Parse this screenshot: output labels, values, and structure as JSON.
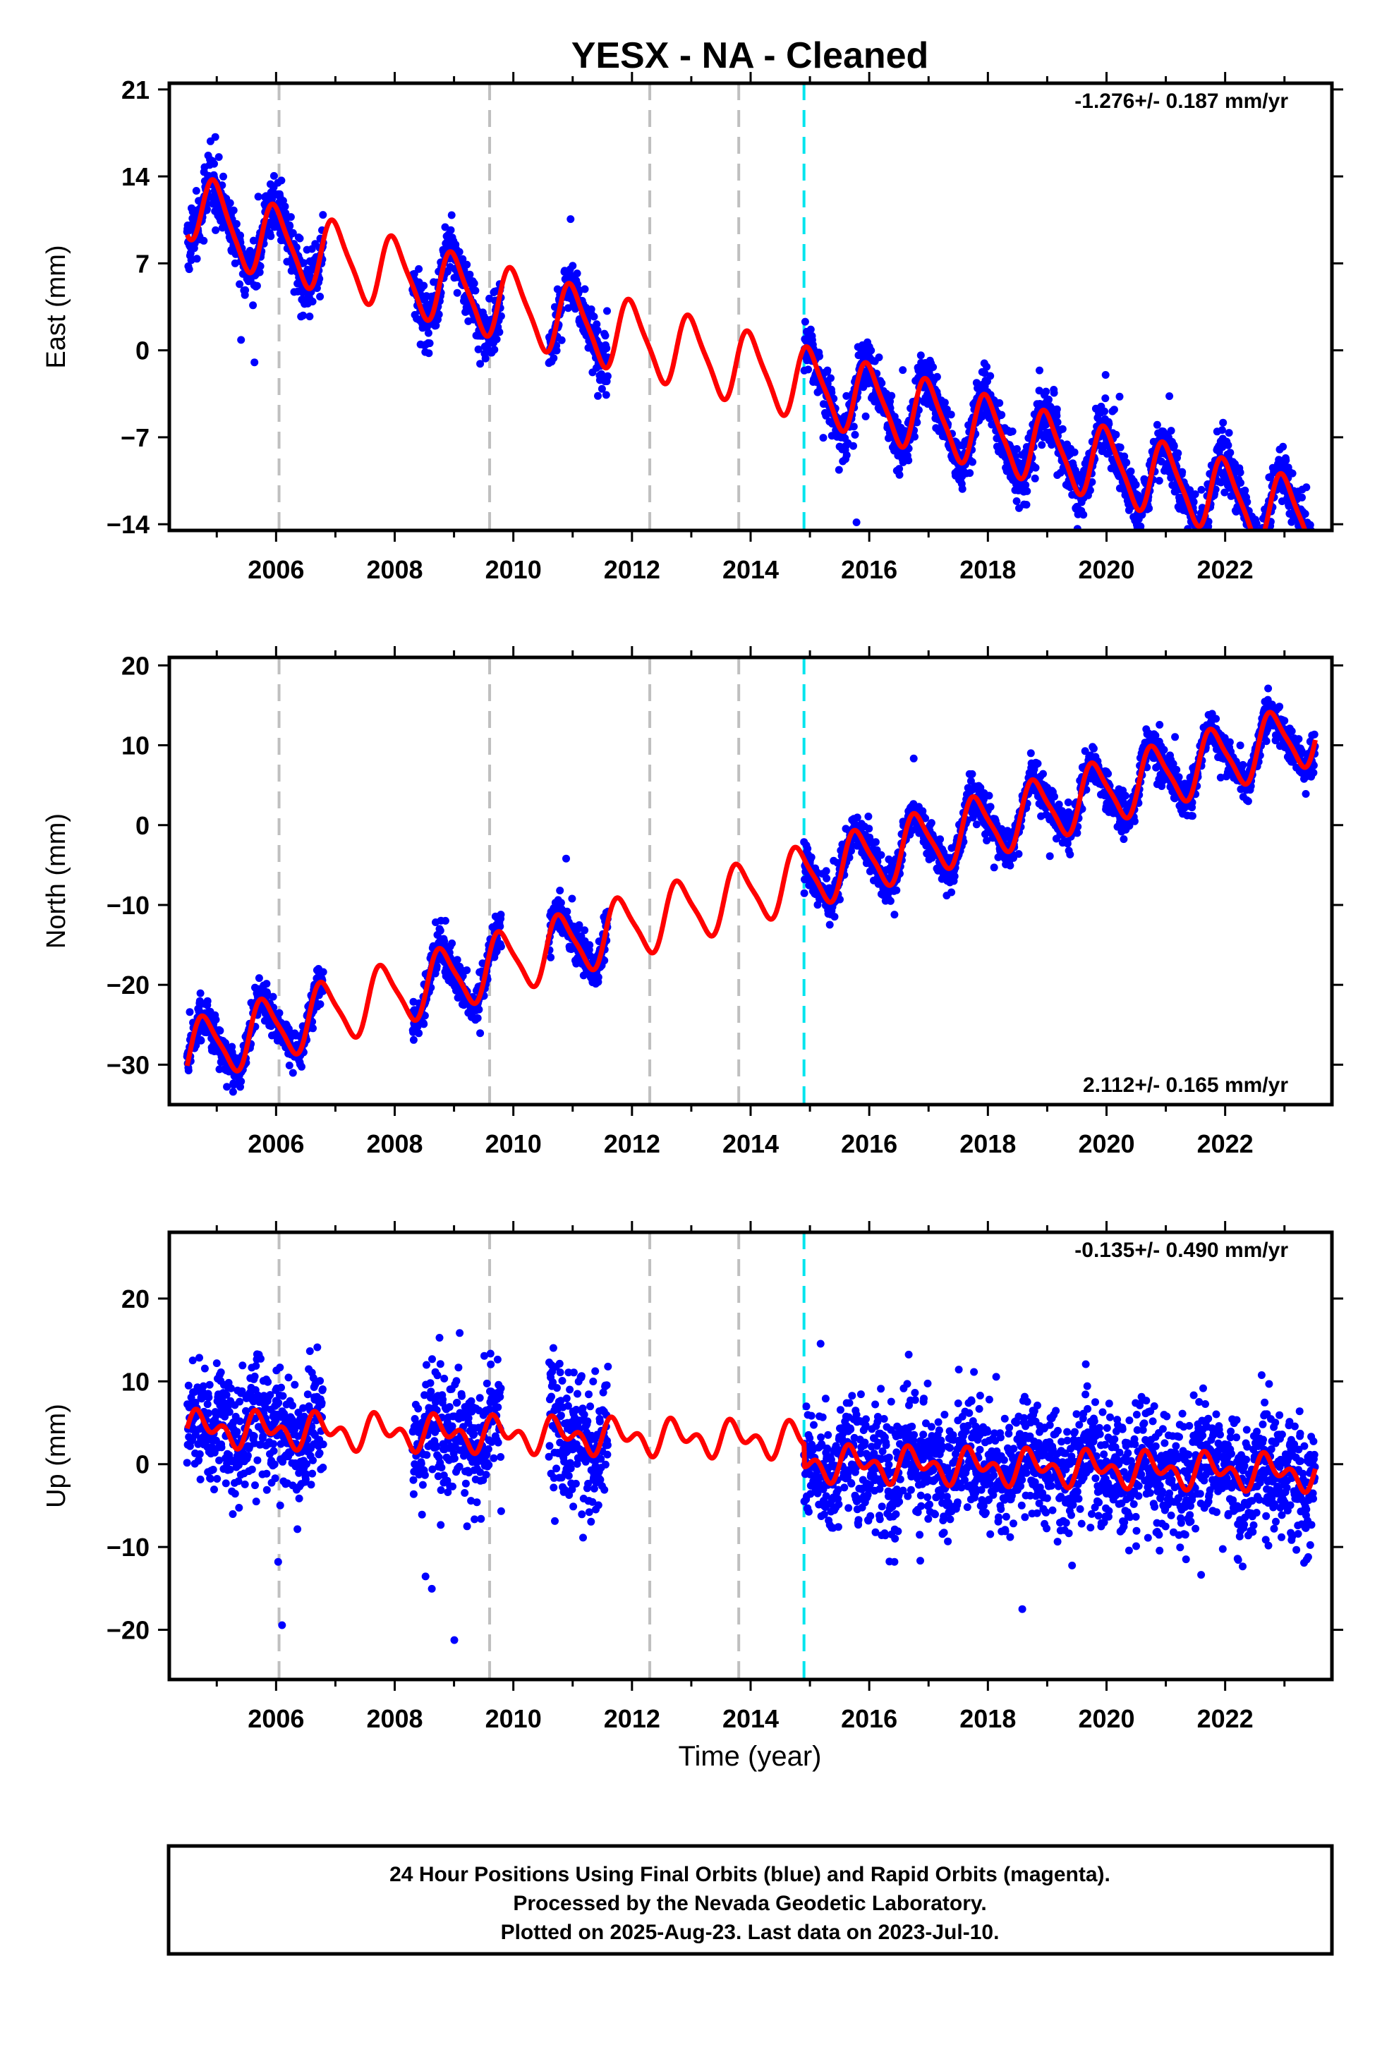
{
  "title": "YESX  - NA - Cleaned",
  "x_axis_label": "Time (year)",
  "footer": {
    "line1": "24 Hour Positions Using Final Orbits (blue) and Rapid Orbits (magenta).",
    "line2": "Processed by the Nevada Geodetic Laboratory.",
    "line3": "Plotted on 2025-Aug-23. Last data on 2023-Jul-10."
  },
  "colors": {
    "final_orbits": "#0000ff",
    "model_fit": "#ff0000",
    "equipment_change": "#bfbfbf",
    "last_change": "#00e5ee"
  },
  "chart_data": [
    {
      "type": "scatter",
      "component": "East",
      "ylabel": "East (mm)",
      "rate_label": "-1.276+/- 0.187 mm/yr",
      "xlim": [
        2004.2,
        2023.8
      ],
      "ylim": [
        -14.5,
        21.5
      ],
      "x_ticks": [
        2006,
        2008,
        2010,
        2012,
        2014,
        2016,
        2018,
        2020,
        2022
      ],
      "y_ticks": [
        21,
        14,
        7,
        0,
        -7,
        -14
      ],
      "y_tick_labels": [
        "21",
        "14",
        "7",
        "0",
        "−7",
        "−14"
      ],
      "equipment_changes": [
        2006.05,
        2009.6,
        2012.3,
        2013.8
      ],
      "last_change": 2014.9,
      "data_segments": [
        [
          2004.5,
          2006.8
        ],
        [
          2008.3,
          2009.8
        ],
        [
          2010.6,
          2011.6
        ],
        [
          2014.9,
          2023.52
        ]
      ],
      "model": {
        "offset": 10.6,
        "trend": -1.276,
        "annual_amp": 2.8,
        "annual_phase_yr": 0.75,
        "semiannual_amp": 0.6,
        "noise_sd": 1.1,
        "start_jump": 1.5
      },
      "series": [
        {
          "name": "Final Orbits",
          "color": "#0000ff",
          "style": "points"
        },
        {
          "name": "Model",
          "color": "#ff0000",
          "style": "line"
        }
      ]
    },
    {
      "type": "scatter",
      "component": "North",
      "ylabel": "North (mm)",
      "rate_label": "2.112+/- 0.165 mm/yr",
      "xlim": [
        2004.2,
        2023.8
      ],
      "ylim": [
        -35,
        21
      ],
      "x_ticks": [
        2006,
        2008,
        2010,
        2012,
        2014,
        2016,
        2018,
        2020,
        2022
      ],
      "y_ticks": [
        20,
        10,
        0,
        -10,
        -20,
        -30
      ],
      "y_tick_labels": [
        "20",
        "10",
        "0",
        "−10",
        "−20",
        "−30"
      ],
      "equipment_changes": [
        2006.05,
        2009.6,
        2012.3,
        2013.8
      ],
      "last_change": 2014.9,
      "data_segments": [
        [
          2004.5,
          2006.8
        ],
        [
          2008.3,
          2009.8
        ],
        [
          2010.6,
          2011.6
        ],
        [
          2014.9,
          2023.52
        ]
      ],
      "model": {
        "offset": -28.5,
        "trend": 2.112,
        "annual_amp": 3.8,
        "annual_phase_yr": 0.55,
        "semiannual_amp": 0.8,
        "noise_sd": 1.2,
        "start_jump": 0
      },
      "series": [
        {
          "name": "Final Orbits",
          "color": "#0000ff",
          "style": "points"
        },
        {
          "name": "Model",
          "color": "#ff0000",
          "style": "line"
        }
      ]
    },
    {
      "type": "scatter",
      "component": "Up",
      "ylabel": "Up (mm)",
      "rate_label": "-0.135+/- 0.490 mm/yr",
      "xlim": [
        2004.2,
        2023.8
      ],
      "ylim": [
        -26,
        28
      ],
      "x_ticks": [
        2006,
        2008,
        2010,
        2012,
        2014,
        2016,
        2018,
        2020,
        2022
      ],
      "y_ticks": [
        20,
        10,
        0,
        -10,
        -20
      ],
      "y_tick_labels": [
        "20",
        "10",
        "0",
        "−10",
        "−20"
      ],
      "equipment_changes": [
        2006.05,
        2009.6,
        2012.3,
        2013.8
      ],
      "last_change": 2014.9,
      "data_segments": [
        [
          2004.5,
          2006.8
        ],
        [
          2008.3,
          2009.8
        ],
        [
          2010.6,
          2011.6
        ],
        [
          2014.9,
          2023.52
        ]
      ],
      "model": {
        "offset": 4.3,
        "trend": -0.135,
        "annual_amp": 1.4,
        "annual_phase_yr": 0.5,
        "semiannual_amp": 1.3,
        "noise_sd": 3.6,
        "start_jump": 0,
        "drop_at": 2014.9,
        "drop": -2.8
      },
      "series": [
        {
          "name": "Final Orbits",
          "color": "#0000ff",
          "style": "points"
        },
        {
          "name": "Model",
          "color": "#ff0000",
          "style": "line"
        }
      ]
    }
  ]
}
